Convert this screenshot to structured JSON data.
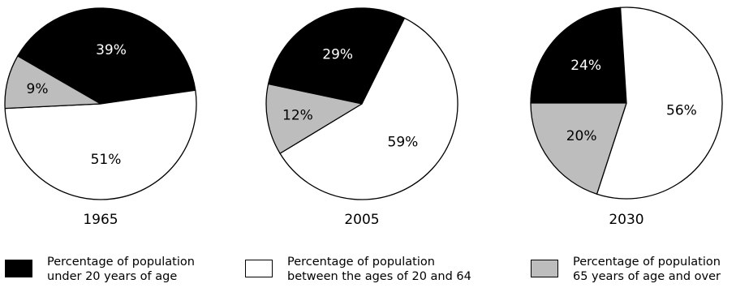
{
  "chart_data": {
    "type": "pie",
    "colors": {
      "under_20": "#000000",
      "between_20_and_64": "#ffffff",
      "over_65": "#bdbdbd"
    },
    "legend": [
      {
        "key": "under_20",
        "line1": "Percentage of population",
        "line2": "under 20 years of age"
      },
      {
        "key": "between_20_and_64",
        "line1": "Percentage of population",
        "line2": "between the ages of 20 and 64"
      },
      {
        "key": "over_65",
        "line1": "Percentage of population",
        "line2": "65 years of age and over"
      }
    ],
    "charts": [
      {
        "year": "1965",
        "slices": [
          {
            "key": "under_20",
            "value": 39,
            "label": "39%"
          },
          {
            "key": "between_20_and_64",
            "value": 51,
            "label": "51%"
          },
          {
            "key": "over_65",
            "value": 9,
            "label": "9%"
          }
        ]
      },
      {
        "year": "2005",
        "slices": [
          {
            "key": "under_20",
            "value": 29,
            "label": "29%"
          },
          {
            "key": "between_20_and_64",
            "value": 59,
            "label": "59%"
          },
          {
            "key": "over_65",
            "value": 12,
            "label": "12%"
          }
        ]
      },
      {
        "year": "2030",
        "slices": [
          {
            "key": "under_20",
            "value": 24,
            "label": "24%"
          },
          {
            "key": "between_20_and_64",
            "value": 56,
            "label": "56%"
          },
          {
            "key": "over_65",
            "value": 20,
            "label": "20%"
          }
        ]
      }
    ]
  }
}
